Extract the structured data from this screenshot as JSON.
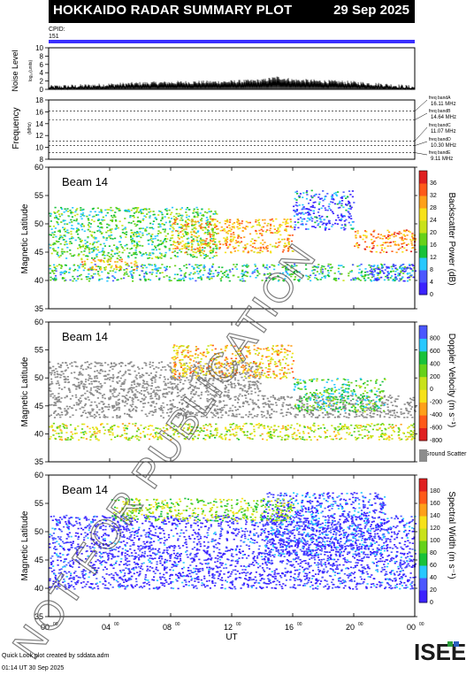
{
  "header": {
    "title": "HOKKAIDO RADAR SUMMARY PLOT",
    "date": "29 Sep 2025",
    "cpid_label": "CPID:",
    "cpid_value": "151"
  },
  "noise_panel": {
    "ylabel": "Noise Level",
    "ylabel_sub": "log₁₀(units)",
    "yticks": [
      "0",
      "2",
      "4",
      "6",
      "8",
      "10"
    ]
  },
  "freq_panel": {
    "ylabel": "Frequency",
    "unit": "(MHz)",
    "yticks": [
      "8",
      "10",
      "12",
      "14",
      "16",
      "18"
    ],
    "bands": [
      {
        "label": "freq bandA",
        "value": "16.11 MHz"
      },
      {
        "label": "freq bandB",
        "value": "14.64 MHz"
      },
      {
        "label": "freq bandC",
        "value": "11.07 MHz"
      },
      {
        "label": "freq bandD",
        "value": "10.30 MHz"
      },
      {
        "label": "freq bandE",
        "value": "9.11 MHz"
      }
    ]
  },
  "panels": [
    {
      "beam": "Beam 14",
      "ylabel": "Magnetic Latitude",
      "cb_label": "Backscatter Power (dB)",
      "cb_ticks": [
        "0",
        "4",
        "8",
        "12",
        "16",
        "20",
        "24",
        "28",
        "32",
        "36"
      ]
    },
    {
      "beam": "Beam 14",
      "ylabel": "Magnetic Latitude",
      "cb_label": "Doppler Velocity (m s⁻¹)",
      "cb_ticks": [
        "-800",
        "-600",
        "-400",
        "-200",
        "0",
        "200",
        "400",
        "600",
        "800"
      ],
      "ground_scatter": "Ground Scatter"
    },
    {
      "beam": "Beam 14",
      "ylabel": "Magnetic Latitude",
      "cb_label": "Spectral Width (m s⁻¹)",
      "cb_ticks": [
        "0",
        "20",
        "40",
        "60",
        "80",
        "100",
        "120",
        "140",
        "160",
        "180"
      ]
    }
  ],
  "lat_ticks": [
    "35",
    "40",
    "45",
    "50",
    "55",
    "60"
  ],
  "ut_ticks": [
    {
      "h": "00",
      "m": "00"
    },
    {
      "h": "04",
      "m": "00"
    },
    {
      "h": "08",
      "m": "00"
    },
    {
      "h": "12",
      "m": "00"
    },
    {
      "h": "16",
      "m": "00"
    },
    {
      "h": "20",
      "m": "00"
    },
    {
      "h": "00",
      "m": "00"
    }
  ],
  "xlabel": "UT",
  "watermark": "NOT FOR PUBLICATION",
  "footer": {
    "line1": "Quick Look plot created by sddata.adm",
    "line2": "01:14 UT 30 Sep 2025"
  },
  "logo_text": "ISEE",
  "colors": {
    "header_bg": "#000000",
    "cpid_bar": "#3a2fff",
    "ground_scatter": "#8c8c8c",
    "scale": [
      "#3b22ff",
      "#4b57ff",
      "#28c8ff",
      "#18c23a",
      "#66d21a",
      "#c9e21a",
      "#f7e219",
      "#ffa01a",
      "#ff5a1a",
      "#e02020"
    ]
  },
  "chart_data": [
    {
      "type": "line",
      "title": "Noise Level",
      "x": [
        0,
        2,
        4,
        6,
        8,
        10,
        12,
        14,
        15,
        16,
        18,
        20,
        22,
        24
      ],
      "values": [
        0.5,
        0.7,
        1.0,
        1.3,
        1.5,
        1.6,
        1.7,
        2.0,
        2.7,
        2.1,
        1.8,
        1.5,
        1.0,
        0.4
      ],
      "xlim": [
        0,
        24
      ],
      "ylim": [
        0,
        10
      ]
    },
    {
      "type": "line",
      "title": "Frequency",
      "bands_mhz": [
        16.11,
        14.64,
        11.07,
        10.3,
        9.11
      ],
      "xlim": [
        0,
        24
      ],
      "ylim": [
        8,
        18
      ]
    },
    {
      "type": "heatmap",
      "title": "Backscatter Power",
      "xlim": [
        0,
        24
      ],
      "ylim": [
        35,
        60
      ],
      "zlim": [
        0,
        36
      ],
      "regions": [
        {
          "t0": 0,
          "t1": 24,
          "lat0": 40,
          "lat1": 43,
          "z": 12
        },
        {
          "t0": 0,
          "t1": 11,
          "lat0": 44,
          "lat1": 53,
          "z": 14
        },
        {
          "t0": 2,
          "t1": 6,
          "lat0": 42,
          "lat1": 44,
          "z": 24
        },
        {
          "t0": 8,
          "t1": 16,
          "lat0": 45,
          "lat1": 51,
          "z": 26
        },
        {
          "t0": 16,
          "t1": 20,
          "lat0": 49,
          "lat1": 56,
          "z": 6
        },
        {
          "t0": 20,
          "t1": 24,
          "lat0": 45,
          "lat1": 49,
          "z": 28
        },
        {
          "t0": 21,
          "t1": 24,
          "lat0": 40,
          "lat1": 43,
          "z": 4
        }
      ]
    },
    {
      "type": "heatmap",
      "title": "Doppler Velocity",
      "xlim": [
        0,
        24
      ],
      "ylim": [
        35,
        60
      ],
      "zlim": [
        -800,
        800
      ],
      "regions": [
        {
          "t0": 0,
          "t1": 24,
          "lat0": 43,
          "lat1": 47,
          "z": "ground"
        },
        {
          "t0": 0,
          "t1": 14,
          "lat0": 47,
          "lat1": 53,
          "z": "ground"
        },
        {
          "t0": 0,
          "t1": 24,
          "lat0": 39,
          "lat1": 42,
          "z": -100
        },
        {
          "t0": 8,
          "t1": 16,
          "lat0": 50,
          "lat1": 56,
          "z": -300
        },
        {
          "t0": 16,
          "t1": 22,
          "lat0": 44,
          "lat1": 50,
          "z": 200
        }
      ]
    },
    {
      "type": "heatmap",
      "title": "Spectral Width",
      "xlim": [
        0,
        24
      ],
      "ylim": [
        35,
        60
      ],
      "zlim": [
        0,
        180
      ],
      "regions": [
        {
          "t0": 0,
          "t1": 24,
          "lat0": 40,
          "lat1": 53,
          "z": 10
        },
        {
          "t0": 14,
          "t1": 22,
          "lat0": 46,
          "lat1": 57,
          "z": 20
        },
        {
          "t0": 4,
          "t1": 16,
          "lat0": 52,
          "lat1": 56,
          "z": 90
        }
      ]
    }
  ]
}
